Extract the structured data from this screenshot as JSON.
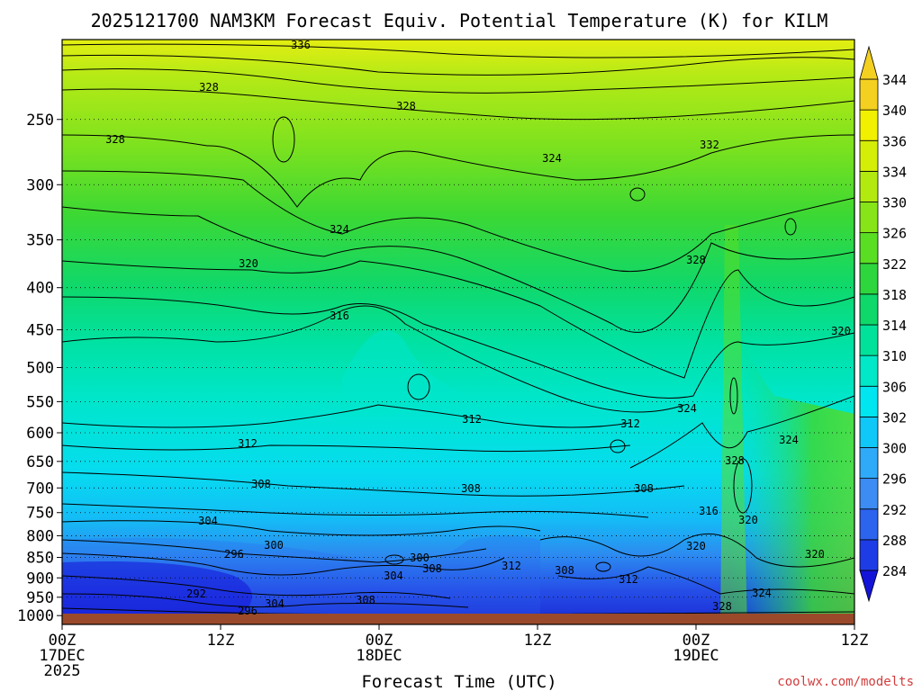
{
  "chart_data": {
    "type": "heatmap",
    "title": "2025121700 NAM3KM Forecast Equiv. Potential Temperature (K) for KILM",
    "xlabel": "Forecast Time (UTC)",
    "ylabel": "",
    "variable": "Equivalent Potential Temperature (K)",
    "x_forecast_hours": [
      0,
      12,
      24,
      36,
      48,
      60
    ],
    "x_tick_labels": [
      [
        "00Z",
        "17DEC",
        "2025"
      ],
      [
        "12Z"
      ],
      [
        "00Z",
        "18DEC"
      ],
      [
        "12Z"
      ],
      [
        "00Z",
        "19DEC"
      ],
      [
        "12Z"
      ]
    ],
    "xlim": [
      0,
      60
    ],
    "y_pressure_hpa": [
      250,
      300,
      350,
      400,
      450,
      500,
      550,
      600,
      650,
      700,
      750,
      800,
      850,
      900,
      950,
      1000
    ],
    "ylim": [
      1025,
      200
    ],
    "y_scale": "log-pressure, inverted",
    "colorbar": {
      "levels": [
        284,
        288,
        292,
        296,
        300,
        302,
        306,
        310,
        314,
        318,
        322,
        326,
        330,
        334,
        336,
        340,
        344
      ],
      "colors": [
        "#1414d8",
        "#1e3ce6",
        "#2c64ee",
        "#3c8cf4",
        "#2eaaf8",
        "#10c8f8",
        "#00e6f0",
        "#00e8c8",
        "#00e29a",
        "#0ed86a",
        "#2ed63e",
        "#5ade24",
        "#86e418",
        "#b2ea10",
        "#d4ee08",
        "#f0f000",
        "#f4d020"
      ],
      "extend": "both"
    },
    "contour_labels": [
      "336",
      "328",
      "328",
      "324",
      "328",
      "332",
      "324",
      "328",
      "320",
      "316",
      "320",
      "312",
      "312",
      "312",
      "324",
      "324",
      "308",
      "308",
      "308",
      "328",
      "304",
      "316",
      "320",
      "300",
      "300",
      "296",
      "304",
      "308",
      "312",
      "308",
      "320",
      "320",
      "312",
      "292",
      "304",
      "308",
      "324",
      "296",
      "328"
    ],
    "ground_color": "#9a4a2a",
    "watermark": "coolwx.com/modelts"
  }
}
